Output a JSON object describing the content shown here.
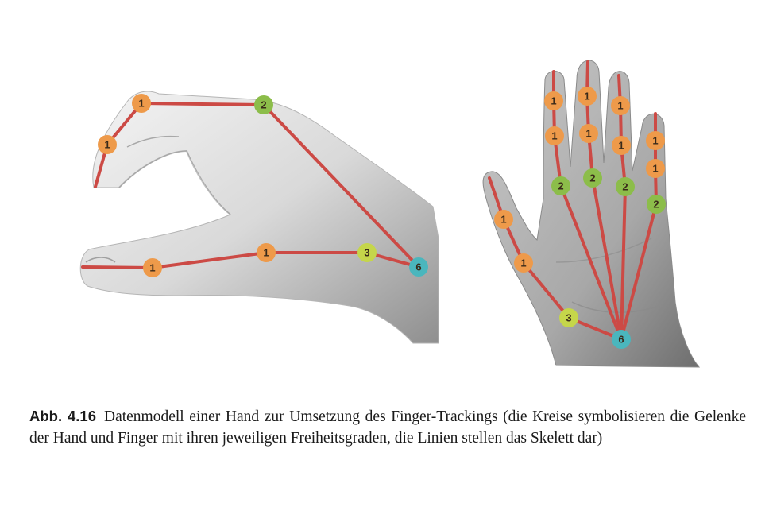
{
  "caption": {
    "label": "Abb. 4.16",
    "text": "Datenmodell einer Hand zur Umsetzung des Finger-Trackings (die Kreise symbolisieren die Gelenke der Hand und Finger mit ihren jeweiligen Freiheitsgraden, die Linien stellen das Skelett dar)"
  },
  "colors": {
    "skeleton_line": "#cc4a45",
    "joint_1": "#ee9a4a",
    "joint_2": "#8cbd4a",
    "joint_3": "#c5d64a",
    "joint_6": "#4ab6bd"
  },
  "left_hand": {
    "joints": [
      {
        "id": "index-tip-base",
        "dof": "1",
        "color": "joint_1"
      },
      {
        "id": "index-mid",
        "dof": "1",
        "color": "joint_1"
      },
      {
        "id": "index-base",
        "dof": "2",
        "color": "joint_2"
      },
      {
        "id": "thumb-tip",
        "dof": "1",
        "color": "joint_1"
      },
      {
        "id": "thumb-mid",
        "dof": "1",
        "color": "joint_1"
      },
      {
        "id": "thumb-base",
        "dof": "3",
        "color": "joint_3"
      },
      {
        "id": "wrist",
        "dof": "6",
        "color": "joint_6"
      }
    ]
  },
  "right_hand": {
    "joints": [
      {
        "id": "index-1",
        "dof": "1",
        "color": "joint_1"
      },
      {
        "id": "middle-1",
        "dof": "1",
        "color": "joint_1"
      },
      {
        "id": "ring-1",
        "dof": "1",
        "color": "joint_1"
      },
      {
        "id": "index-2",
        "dof": "1",
        "color": "joint_1"
      },
      {
        "id": "middle-2",
        "dof": "1",
        "color": "joint_1"
      },
      {
        "id": "ring-2",
        "dof": "1",
        "color": "joint_1"
      },
      {
        "id": "pinky-1",
        "dof": "1",
        "color": "joint_1"
      },
      {
        "id": "pinky-2",
        "dof": "1",
        "color": "joint_1"
      },
      {
        "id": "index-base",
        "dof": "2",
        "color": "joint_2"
      },
      {
        "id": "middle-base",
        "dof": "2",
        "color": "joint_2"
      },
      {
        "id": "ring-base",
        "dof": "2",
        "color": "joint_2"
      },
      {
        "id": "pinky-base",
        "dof": "2",
        "color": "joint_2"
      },
      {
        "id": "thumb-1",
        "dof": "1",
        "color": "joint_1"
      },
      {
        "id": "thumb-2",
        "dof": "1",
        "color": "joint_1"
      },
      {
        "id": "thumb-base",
        "dof": "3",
        "color": "joint_3"
      },
      {
        "id": "wrist",
        "dof": "6",
        "color": "joint_6"
      }
    ]
  }
}
